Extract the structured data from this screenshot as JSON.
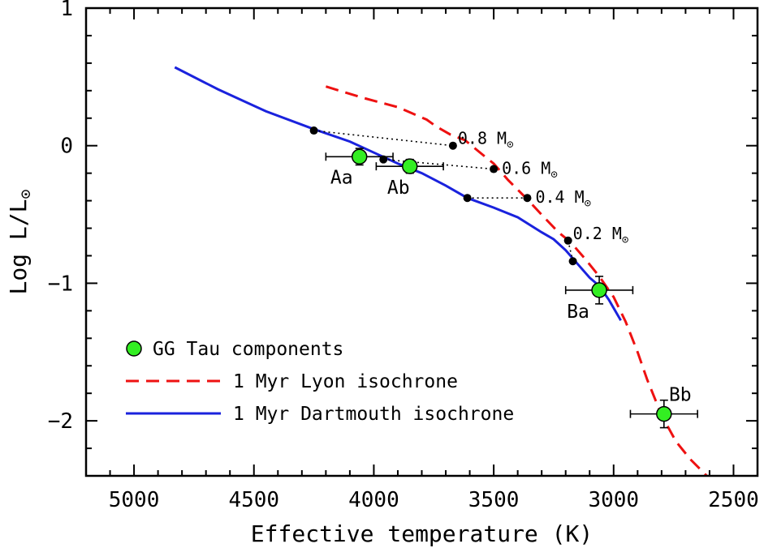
{
  "chart_data": {
    "type": "scatter",
    "title": "",
    "xlabel": "Effective temperature (K)",
    "ylabel_main": "Log L/L",
    "ylabel_sub": "⊙",
    "xlim": [
      5200,
      2400
    ],
    "ylim": [
      -2.4,
      1.0
    ],
    "x_ticks": [
      5000,
      4500,
      4000,
      3500,
      3000,
      2500
    ],
    "y_ticks": [
      {
        "value": 1,
        "label": "1"
      },
      {
        "value": 0,
        "label": "0"
      },
      {
        "value": -1,
        "label": "−1"
      },
      {
        "value": -2,
        "label": "−2"
      }
    ],
    "series": [
      {
        "name": "1 Myr Lyon isochrone",
        "style": "dashed",
        "color": "#ee1111",
        "points": [
          [
            4200,
            0.43
          ],
          [
            4050,
            0.35
          ],
          [
            3900,
            0.28
          ],
          [
            3780,
            0.19
          ],
          [
            3740,
            0.14
          ],
          [
            3680,
            0.08
          ],
          [
            3620,
            0.04
          ],
          [
            3550,
            -0.06
          ],
          [
            3500,
            -0.13
          ],
          [
            3440,
            -0.25
          ],
          [
            3360,
            -0.39
          ],
          [
            3290,
            -0.52
          ],
          [
            3230,
            -0.63
          ],
          [
            3180,
            -0.7
          ],
          [
            3120,
            -0.82
          ],
          [
            3060,
            -0.95
          ],
          [
            3000,
            -1.1
          ],
          [
            2950,
            -1.28
          ],
          [
            2900,
            -1.5
          ],
          [
            2860,
            -1.7
          ],
          [
            2800,
            -1.96
          ],
          [
            2740,
            -2.15
          ],
          [
            2680,
            -2.28
          ],
          [
            2600,
            -2.42
          ]
        ]
      },
      {
        "name": "1 Myr Dartmouth isochrone",
        "style": "solid",
        "color": "#1a22dd",
        "points": [
          [
            4830,
            0.57
          ],
          [
            4650,
            0.41
          ],
          [
            4450,
            0.25
          ],
          [
            4250,
            0.12
          ],
          [
            4100,
            0.03
          ],
          [
            4000,
            -0.05
          ],
          [
            3900,
            -0.13
          ],
          [
            3800,
            -0.2
          ],
          [
            3700,
            -0.29
          ],
          [
            3610,
            -0.38
          ],
          [
            3500,
            -0.45
          ],
          [
            3400,
            -0.52
          ],
          [
            3300,
            -0.63
          ],
          [
            3250,
            -0.68
          ],
          [
            3200,
            -0.76
          ],
          [
            3150,
            -0.86
          ],
          [
            3100,
            -0.96
          ],
          [
            3060,
            -1.02
          ],
          [
            3020,
            -1.12
          ],
          [
            2970,
            -1.27
          ]
        ]
      }
    ],
    "mass_tracks": [
      {
        "label": "0.8 M",
        "dartmouth": [
          4250,
          0.11
        ],
        "lyon": [
          3670,
          0.0
        ]
      },
      {
        "label": "0.6 M",
        "dartmouth": [
          3960,
          -0.1
        ],
        "lyon": [
          3500,
          -0.17
        ]
      },
      {
        "label": "0.4 M",
        "dartmouth": [
          3610,
          -0.38
        ],
        "lyon": [
          3360,
          -0.38
        ]
      },
      {
        "label": "0.2 M",
        "dartmouth": [
          3170,
          -0.84
        ],
        "lyon": [
          3190,
          -0.69
        ]
      }
    ],
    "components": [
      {
        "name": "Aa",
        "teff": 4060,
        "logL": -0.08,
        "teff_err": 140,
        "logL_err": 0.06
      },
      {
        "name": "Ab",
        "teff": 3850,
        "logL": -0.15,
        "teff_err": 140,
        "logL_err": 0.05
      },
      {
        "name": "Ba",
        "teff": 3060,
        "logL": -1.05,
        "teff_err": 140,
        "logL_err": 0.1
      },
      {
        "name": "Bb",
        "teff": 2790,
        "logL": -1.95,
        "teff_err": 140,
        "logL_err": 0.1
      }
    ],
    "legend": {
      "position": "bottom-left",
      "entries": [
        {
          "label": "GG Tau components",
          "kind": "marker",
          "color": "#33ee22"
        },
        {
          "label": "1 Myr Lyon isochrone",
          "kind": "dashed",
          "color": "#ee1111"
        },
        {
          "label": "1 Myr Dartmouth isochrone",
          "kind": "solid",
          "color": "#1a22dd"
        }
      ]
    },
    "solar_symbol": "⊙"
  }
}
